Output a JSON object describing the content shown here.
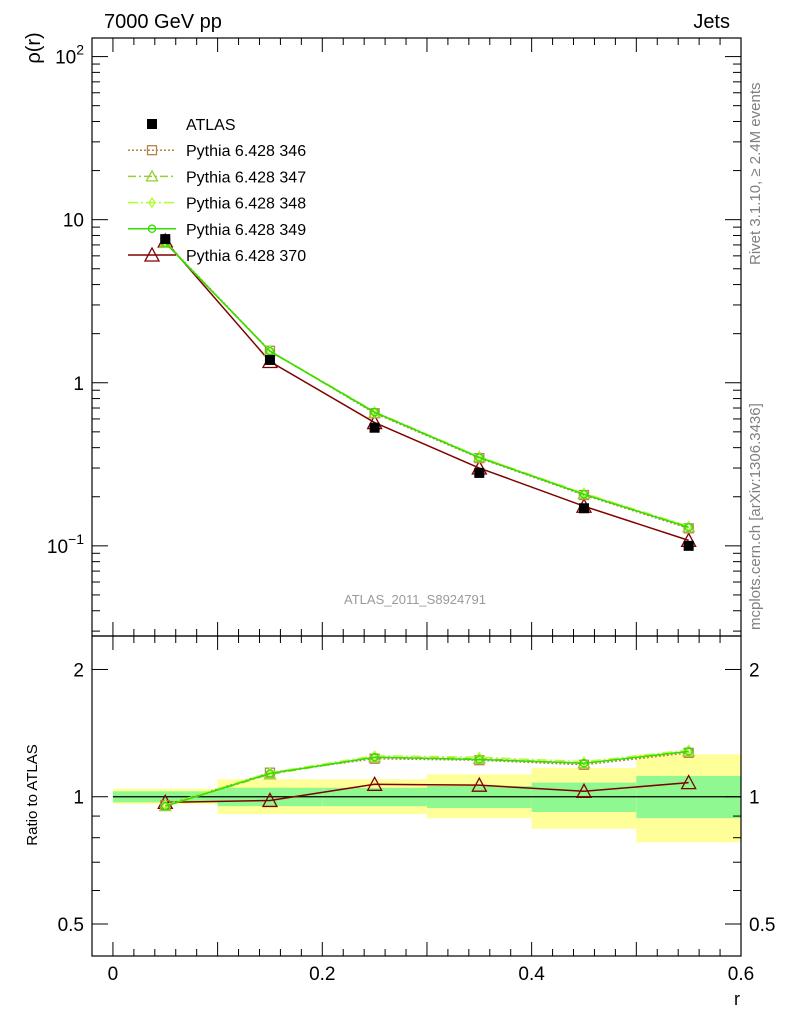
{
  "header": {
    "left": "7000 GeV pp",
    "right": "Jets"
  },
  "side_labels": {
    "rivet": "Rivet 3.1.10, ≥ 2.4M events",
    "mcplots": "mcplots.cern.ch [arXiv:1306.3436]"
  },
  "watermark": "ATLAS_2011_S8924791",
  "colors": {
    "atlas": "#000000",
    "p346": "#b5854a",
    "p347": "#9acd32",
    "p348": "#adff2f",
    "p349": "#33dd00",
    "p370": "#800000",
    "band_inner": "#90f890",
    "band_outer": "#ffff99"
  },
  "chart_data": [
    {
      "type": "line",
      "panel": "main",
      "ylabel": "ρ(r)",
      "yscale": "log",
      "ylim": [
        0.028,
        130
      ],
      "xlim": [
        -0.02,
        0.6
      ],
      "ytick_labels": [
        "10",
        "1"
      ],
      "ytick_values": [
        10,
        1
      ],
      "ytick_pow_labels": [
        {
          "base": "10",
          "exp": "2",
          "value": 100
        },
        {
          "base": "10",
          "exp": "−1",
          "value": 0.1
        }
      ],
      "x": [
        0.05,
        0.15,
        0.25,
        0.35,
        0.45,
        0.55
      ],
      "legend": [
        "ATLAS",
        "Pythia 6.428 346",
        "Pythia 6.428 347",
        "Pythia 6.428 348",
        "Pythia 6.428 349",
        "Pythia 6.428 370"
      ],
      "legend_position": "top-left",
      "series": [
        {
          "name": "ATLAS",
          "marker": "square-filled",
          "values": [
            7.6,
            1.38,
            0.53,
            0.28,
            0.17,
            0.1
          ]
        },
        {
          "name": "Pythia 6.428 346",
          "marker": "square-open",
          "values": [
            7.3,
            1.57,
            0.65,
            0.345,
            0.205,
            0.128
          ]
        },
        {
          "name": "Pythia 6.428 347",
          "marker": "triangle-open",
          "values": [
            7.2,
            1.56,
            0.655,
            0.35,
            0.208,
            0.13
          ]
        },
        {
          "name": "Pythia 6.428 348",
          "marker": "diamond-open",
          "values": [
            7.25,
            1.57,
            0.665,
            0.352,
            0.21,
            0.132
          ]
        },
        {
          "name": "Pythia 6.428 349",
          "marker": "circle-open",
          "values": [
            7.22,
            1.56,
            0.66,
            0.348,
            0.207,
            0.13
          ]
        },
        {
          "name": "Pythia 6.428 370",
          "marker": "triangle-open",
          "values": [
            7.4,
            1.35,
            0.57,
            0.3,
            0.175,
            0.108
          ]
        }
      ]
    },
    {
      "type": "line",
      "panel": "ratio",
      "ylabel": "Ratio to ATLAS",
      "xlabel": "r",
      "yscale": "log",
      "ylim": [
        0.42,
        2.4
      ],
      "xlim": [
        -0.02,
        0.6
      ],
      "xtick_labels": [
        "0",
        "0.2",
        "0.4",
        "0.6"
      ],
      "xtick_values": [
        0,
        0.2,
        0.4,
        0.6
      ],
      "ytick_labels": [
        "2",
        "1",
        "0.5"
      ],
      "ytick_values": [
        2,
        1,
        0.5
      ],
      "x": [
        0.05,
        0.15,
        0.25,
        0.35,
        0.45,
        0.55
      ],
      "bands": [
        {
          "x0": 0.0,
          "x1": 0.1,
          "inner": [
            0.97,
            1.03
          ],
          "outer": [
            0.96,
            1.045
          ]
        },
        {
          "x0": 0.1,
          "x1": 0.2,
          "inner": [
            0.95,
            1.05
          ],
          "outer": [
            0.91,
            1.1
          ]
        },
        {
          "x0": 0.2,
          "x1": 0.3,
          "inner": [
            0.95,
            1.05
          ],
          "outer": [
            0.91,
            1.1
          ]
        },
        {
          "x0": 0.3,
          "x1": 0.4,
          "inner": [
            0.94,
            1.06
          ],
          "outer": [
            0.89,
            1.13
          ]
        },
        {
          "x0": 0.4,
          "x1": 0.5,
          "inner": [
            0.92,
            1.08
          ],
          "outer": [
            0.84,
            1.17
          ]
        },
        {
          "x0": 0.5,
          "x1": 0.6,
          "inner": [
            0.89,
            1.12
          ],
          "outer": [
            0.78,
            1.26
          ]
        }
      ],
      "series": [
        {
          "name": "Pythia 6.428 346",
          "values": [
            0.955,
            1.14,
            1.23,
            1.22,
            1.19,
            1.27
          ]
        },
        {
          "name": "Pythia 6.428 347",
          "values": [
            0.95,
            1.13,
            1.24,
            1.23,
            1.2,
            1.28
          ]
        },
        {
          "name": "Pythia 6.428 348",
          "values": [
            0.955,
            1.14,
            1.25,
            1.24,
            1.21,
            1.29
          ]
        },
        {
          "name": "Pythia 6.428 349",
          "values": [
            0.95,
            1.135,
            1.24,
            1.225,
            1.2,
            1.28
          ]
        },
        {
          "name": "Pythia 6.428 370",
          "values": [
            0.97,
            0.98,
            1.07,
            1.065,
            1.03,
            1.08
          ]
        }
      ]
    }
  ]
}
